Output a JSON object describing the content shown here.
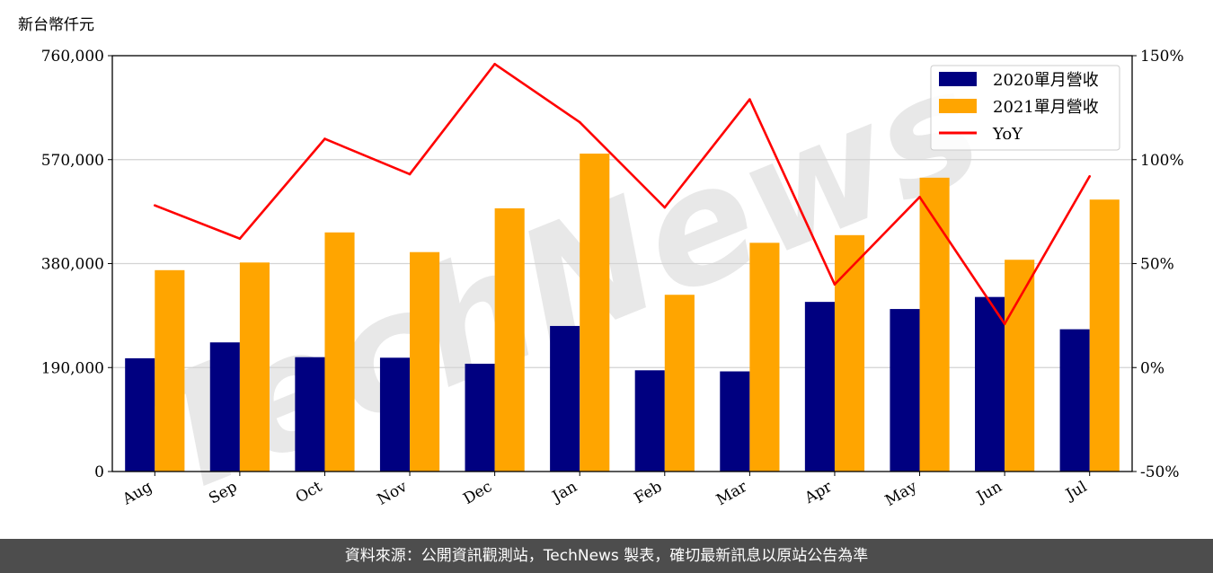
{
  "unit_label": "新台幣仟元",
  "footer_text": "資料來源：公開資訊觀測站，TechNews 製表，確切最新訊息以原站公告為準",
  "watermark": "TechNews",
  "colors": {
    "s2020": "#000080",
    "s2021": "#FFA500",
    "yoy": "#FF0000",
    "grid": "#d3d3d3"
  },
  "chart_data": {
    "type": "bar",
    "categories": [
      "Aug",
      "Sep",
      "Oct",
      "Nov",
      "Dec",
      "Jan",
      "Feb",
      "Mar",
      "Apr",
      "May",
      "Jun",
      "Jul"
    ],
    "series": [
      {
        "name": "2020單月營收",
        "kind": "bar",
        "axis": "left",
        "values": [
          207000,
          236000,
          209000,
          208000,
          197000,
          266000,
          185000,
          183000,
          310000,
          297000,
          319000,
          260000
        ]
      },
      {
        "name": "2021單月營收",
        "kind": "bar",
        "axis": "left",
        "values": [
          368000,
          382000,
          437000,
          401000,
          481000,
          581000,
          323000,
          418000,
          432000,
          537000,
          387000,
          497000
        ]
      },
      {
        "name": "YoY",
        "kind": "line",
        "axis": "right",
        "values": [
          78,
          62,
          110,
          93,
          146,
          118,
          77,
          129,
          40,
          82,
          21,
          92
        ]
      }
    ],
    "ylim": [
      0,
      760000
    ],
    "yticks": [
      "0",
      "190,000",
      "380,000",
      "570,000",
      "760,000"
    ],
    "ylim_right": [
      -50,
      150
    ],
    "yticks_right": [
      "-50%",
      "0%",
      "50%",
      "100%",
      "150%"
    ],
    "grid": true,
    "legend_position": "top-right"
  }
}
